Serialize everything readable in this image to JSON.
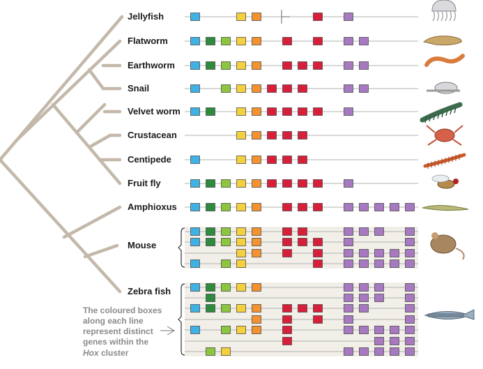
{
  "colors": {
    "blue": "#3fb2e3",
    "dkgreen": "#2e8b3e",
    "ltgreen": "#8cc63f",
    "yellow": "#f4d03f",
    "orange": "#f39231",
    "red": "#d81f3a",
    "purple": "#a779c0",
    "tree": "#c3b8aa",
    "line": "#b0b0b0",
    "note": "#8a8a8a"
  },
  "taxa": [
    {
      "id": "jellyfish",
      "label": "Jellyfish",
      "icon": "jellyfish-illustration",
      "lines": [
        {
          "genes": [
            "blue",
            null,
            null,
            "yellow",
            "orange",
            null,
            null,
            null,
            "red",
            null,
            "purple"
          ]
        }
      ]
    },
    {
      "id": "flatworm",
      "label": "Flatworm",
      "icon": "flatworm-illustration",
      "lines": [
        {
          "genes": [
            "blue",
            "dkgreen",
            "ltgreen",
            "yellow",
            "orange",
            null,
            "red",
            null,
            "red",
            null,
            "purple",
            "purple"
          ]
        }
      ]
    },
    {
      "id": "earthworm",
      "label": "Earthworm",
      "icon": "earthworm-illustration",
      "lines": [
        {
          "genes": [
            "blue",
            "dkgreen",
            "ltgreen",
            "yellow",
            "orange",
            null,
            "red",
            "red",
            "red",
            null,
            "purple",
            "purple"
          ]
        }
      ]
    },
    {
      "id": "snail",
      "label": "Snail",
      "icon": "snail-illustration",
      "lines": [
        {
          "genes": [
            "blue",
            null,
            "ltgreen",
            "yellow",
            "orange",
            "red",
            "red",
            "red",
            null,
            null,
            "purple",
            "purple"
          ]
        }
      ]
    },
    {
      "id": "velvet-worm",
      "label": "Velvet worm",
      "icon": "velvet-worm-illustration",
      "lines": [
        {
          "genes": [
            "blue",
            "dkgreen",
            null,
            "yellow",
            "orange",
            "red",
            "red",
            "red",
            "red",
            null,
            "purple"
          ]
        }
      ]
    },
    {
      "id": "crustacean",
      "label": "Crustacean",
      "icon": "crab-illustration",
      "lines": [
        {
          "genes": [
            null,
            null,
            null,
            "yellow",
            "orange",
            "red",
            "red",
            "red"
          ]
        }
      ]
    },
    {
      "id": "centipede",
      "label": "Centipede",
      "icon": "centipede-illustration",
      "lines": [
        {
          "genes": [
            "blue",
            null,
            null,
            "yellow",
            "orange",
            "red",
            "red",
            "red"
          ]
        }
      ]
    },
    {
      "id": "fruit-fly",
      "label": "Fruit fly",
      "icon": "fruit-fly-illustration",
      "lines": [
        {
          "genes": [
            "blue",
            "dkgreen",
            "ltgreen",
            "yellow",
            "orange",
            "red",
            "red",
            "red",
            "red",
            null,
            "purple"
          ]
        }
      ]
    },
    {
      "id": "amphioxus",
      "label": "Amphioxus",
      "icon": "amphioxus-illustration",
      "lines": [
        {
          "genes": [
            "blue",
            "dkgreen",
            "ltgreen",
            "yellow",
            "orange",
            null,
            "red",
            "red",
            "red",
            null,
            "purple",
            "purple",
            "purple",
            "purple",
            "purple"
          ]
        }
      ]
    },
    {
      "id": "mouse",
      "label": "Mouse",
      "icon": "mouse-illustration",
      "lines": [
        {
          "genes": [
            "blue",
            "dkgreen",
            "ltgreen",
            "yellow",
            "orange",
            null,
            "red",
            "red",
            null,
            null,
            "purple",
            "purple",
            "purple",
            null,
            "purple"
          ]
        },
        {
          "genes": [
            "blue",
            "dkgreen",
            "ltgreen",
            "yellow",
            "orange",
            null,
            "red",
            "red",
            "red",
            null,
            "purple",
            null,
            null,
            null,
            "purple"
          ]
        },
        {
          "genes": [
            null,
            null,
            null,
            "yellow",
            "orange",
            null,
            "red",
            null,
            "red",
            null,
            "purple",
            "purple",
            "purple",
            "purple",
            "purple"
          ]
        },
        {
          "genes": [
            "blue",
            null,
            "ltgreen",
            "yellow",
            null,
            null,
            null,
            null,
            "red",
            null,
            "purple",
            "purple",
            "purple",
            "purple",
            "purple"
          ]
        }
      ]
    },
    {
      "id": "zebra-fish",
      "label": "Zebra fish",
      "icon": "zebra-fish-illustration",
      "lines": [
        {
          "genes": [
            "blue",
            "dkgreen",
            "ltgreen",
            "yellow",
            "orange",
            null,
            null,
            null,
            null,
            null,
            "purple",
            "purple",
            "purple",
            null,
            "purple"
          ]
        },
        {
          "genes": [
            null,
            "dkgreen",
            null,
            null,
            null,
            null,
            null,
            null,
            null,
            null,
            "purple",
            "purple",
            "purple",
            null,
            "purple"
          ]
        },
        {
          "genes": [
            "blue",
            "dkgreen",
            "ltgreen",
            "yellow",
            "orange",
            null,
            "red",
            "red",
            "red",
            null,
            "purple",
            "purple",
            null,
            null,
            "purple"
          ]
        },
        {
          "genes": [
            null,
            null,
            null,
            null,
            "orange",
            null,
            "red",
            null,
            "red",
            null,
            "purple",
            null,
            null,
            null,
            "purple"
          ]
        },
        {
          "genes": [
            "blue",
            null,
            "ltgreen",
            "yellow",
            "orange",
            null,
            "red",
            null,
            null,
            null,
            "purple",
            "purple",
            "purple",
            "purple",
            "purple"
          ]
        },
        {
          "genes": [
            null,
            null,
            null,
            null,
            null,
            null,
            "red",
            null,
            null,
            null,
            null,
            null,
            "purple",
            "purple",
            "purple"
          ]
        },
        {
          "genes": [
            null,
            "ltgreen",
            "yellow",
            null,
            null,
            null,
            null,
            null,
            null,
            null,
            "purple",
            "purple",
            "purple",
            "purple",
            "purple"
          ]
        }
      ]
    }
  ],
  "note": {
    "lines": [
      "The coloured boxes",
      "along each line",
      "represent distinct",
      "genes within the"
    ],
    "last_italic": "Hox",
    "last_rest": " cluster"
  }
}
